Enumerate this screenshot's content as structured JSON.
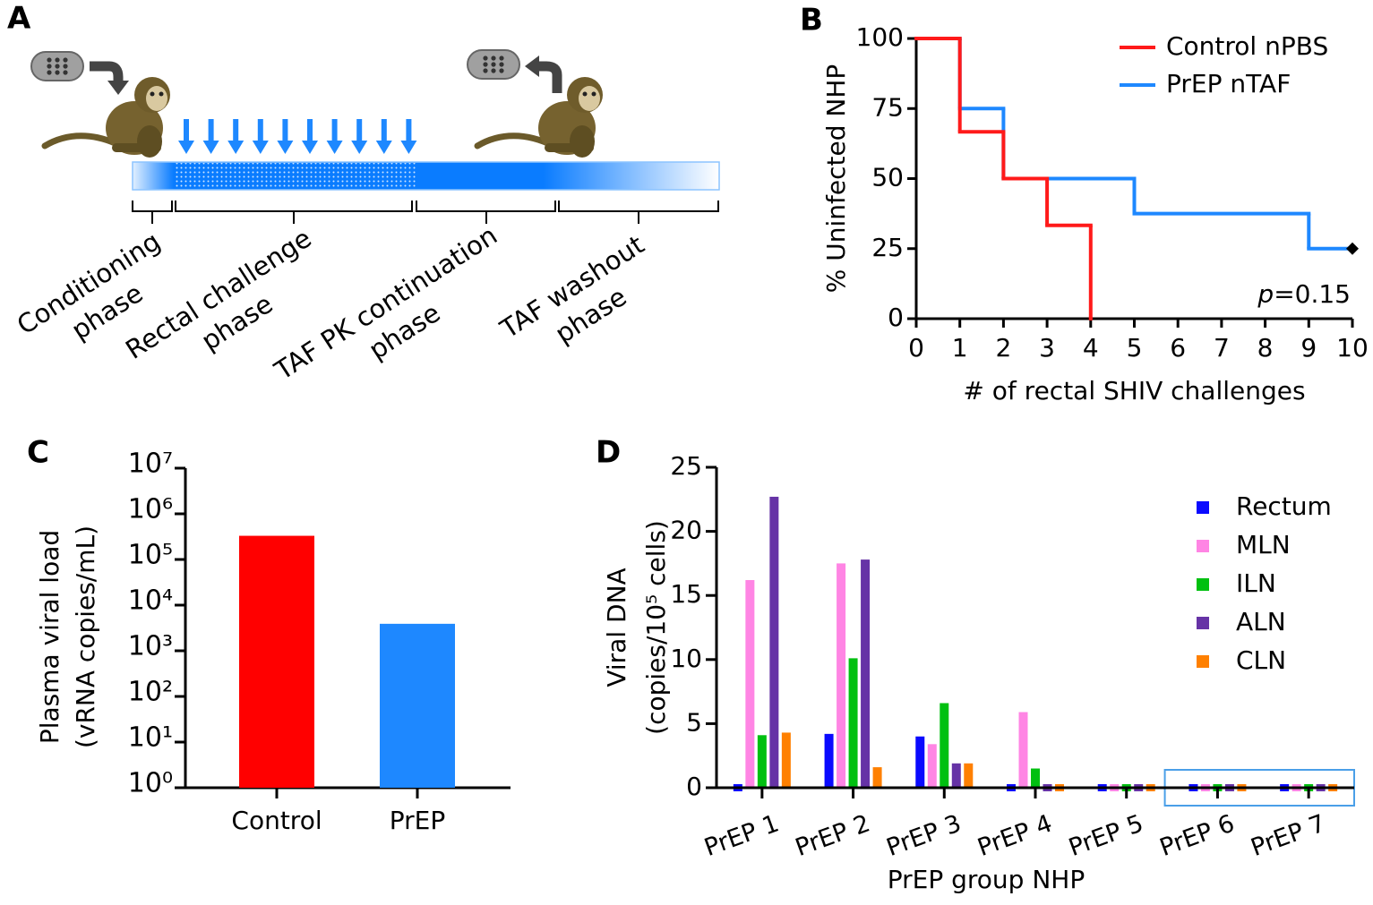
{
  "diagram": {
    "panel_label": "A",
    "phases": [
      [
        "Conditioning",
        "phase"
      ],
      [
        "Rectal challenge",
        "phase"
      ],
      [
        "TAF PK continuation",
        "phase"
      ],
      [
        "TAF washout",
        "phase"
      ]
    ]
  },
  "chart_data": [
    {
      "type": "line",
      "step": true,
      "panel_label": "B",
      "xlabel": "# of rectal SHIV challenges",
      "ylabel": "% Uninfected NHP",
      "xlim": [
        0,
        10
      ],
      "xticks": [
        0,
        1,
        2,
        3,
        4,
        5,
        6,
        7,
        8,
        9,
        10
      ],
      "ylim": [
        0,
        100
      ],
      "yticks": [
        0,
        25,
        50,
        75,
        100
      ],
      "annotation": "p=0.15",
      "legend": "upper right",
      "series": [
        {
          "name": "Control nPBS",
          "color": "#ff1a1a",
          "x": [
            0,
            1,
            2,
            3,
            4
          ],
          "values": [
            100,
            66.7,
            50,
            33.3,
            0
          ]
        },
        {
          "name": "PrEP nTAF",
          "color": "#1e88ff",
          "x": [
            0,
            1,
            2,
            5,
            9,
            10
          ],
          "values": [
            100,
            75,
            50,
            37.5,
            25,
            25
          ]
        }
      ]
    },
    {
      "type": "bar",
      "panel_label": "C",
      "log": true,
      "ylabel": [
        "Plasma viral load",
        "(vRNA copies/mL)"
      ],
      "categories": [
        "Control",
        "PrEP"
      ],
      "values": [
        330000,
        3900
      ],
      "colors": [
        "#ff0000",
        "#1e88ff"
      ],
      "ylim": [
        1,
        10000000
      ],
      "yticks": [
        {
          "value": 1,
          "label": "10⁰"
        },
        {
          "value": 10,
          "label": "10¹"
        },
        {
          "value": 100,
          "label": "10²"
        },
        {
          "value": 1000,
          "label": "10³"
        },
        {
          "value": 10000,
          "label": "10⁴"
        },
        {
          "value": 100000,
          "label": "10⁵"
        },
        {
          "value": 1000000,
          "label": "10⁶"
        },
        {
          "value": 10000000,
          "label": "10⁷"
        }
      ]
    },
    {
      "type": "grouped_bar",
      "panel_label": "D",
      "ylabel": [
        "Viral DNA",
        "(copies/10⁵ cells)"
      ],
      "xlabel": "PrEP group NHP",
      "categories": [
        "PrEP 1",
        "PrEP 2",
        "PrEP 3",
        "PrEP 4",
        "PrEP 5",
        "PrEP 6",
        "PrEP 7"
      ],
      "ylim": [
        0,
        25
      ],
      "yticks": [
        0,
        5,
        10,
        15,
        20,
        25
      ],
      "legend": "right",
      "series": [
        {
          "name": "Rectum",
          "color": "#0a0aff",
          "values": [
            0,
            4.2,
            4.0,
            0,
            0,
            0,
            0
          ]
        },
        {
          "name": "MLN",
          "color": "#ff85e4",
          "values": [
            16.2,
            17.5,
            3.4,
            5.9,
            0,
            0,
            0
          ]
        },
        {
          "name": "ILN",
          "color": "#00c010",
          "values": [
            4.1,
            10.1,
            6.6,
            1.5,
            0,
            0,
            0
          ]
        },
        {
          "name": "ALN",
          "color": "#6633a6",
          "values": [
            22.7,
            17.8,
            1.9,
            0,
            0,
            0,
            0
          ]
        },
        {
          "name": "CLN",
          "color": "#ff8000",
          "values": [
            4.3,
            1.6,
            1.9,
            0,
            0,
            0,
            0
          ]
        }
      ]
    }
  ]
}
